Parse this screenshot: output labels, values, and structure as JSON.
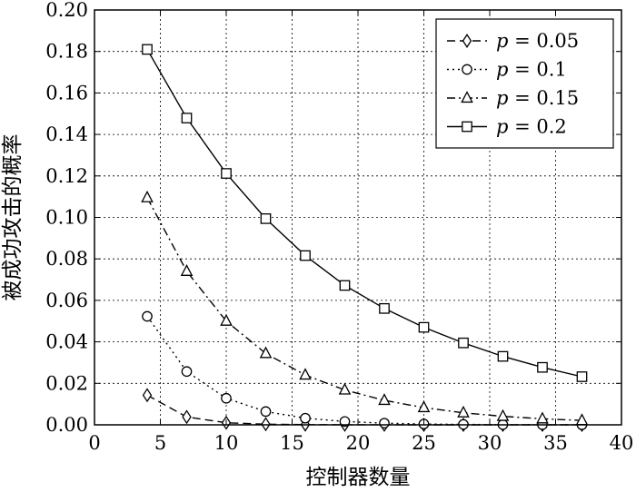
{
  "chart_data": {
    "type": "line",
    "title": "",
    "xlabel": "控制器数量",
    "ylabel": "被成功攻击的概率",
    "xlim": [
      0,
      40
    ],
    "ylim": [
      0,
      0.2
    ],
    "grid": true,
    "legend_position": "top-right",
    "x_ticks": [
      "0",
      "5",
      "10",
      "15",
      "20",
      "25",
      "30",
      "35",
      "40"
    ],
    "y_ticks": [
      "0.00",
      "0.02",
      "0.04",
      "0.06",
      "0.08",
      "0.10",
      "0.12",
      "0.14",
      "0.16",
      "0.18",
      "0.20"
    ],
    "x": [
      4,
      7,
      10,
      13,
      16,
      19,
      22,
      25,
      28,
      31,
      34,
      37
    ],
    "series": [
      {
        "name": "p = 0.05",
        "name_var": "p",
        "name_value": "= 0.05",
        "marker": "diamond",
        "dash": "dashed",
        "values": [
          0.0143,
          0.0038,
          0.001,
          0.0003,
          0.0001,
          3e-05,
          1e-05,
          0.0,
          0.0,
          0.0,
          0.0,
          0.0
        ]
      },
      {
        "name": "p = 0.1",
        "name_var": "p",
        "name_value": "= 0.1",
        "marker": "circle",
        "dash": "dotted",
        "values": [
          0.0523,
          0.0257,
          0.0128,
          0.0064,
          0.0032,
          0.0016,
          0.0008,
          0.0004,
          0.0002,
          0.0001,
          5e-05,
          2e-05
        ]
      },
      {
        "name": "p = 0.15",
        "name_var": "p",
        "name_value": "= 0.15",
        "marker": "triangle",
        "dash": "dashdot",
        "values": [
          0.1095,
          0.074,
          0.05,
          0.0344,
          0.024,
          0.0168,
          0.0118,
          0.0083,
          0.0058,
          0.0041,
          0.0029,
          0.0021
        ]
      },
      {
        "name": "p = 0.2",
        "name_var": "p",
        "name_value": "= 0.2",
        "marker": "square",
        "dash": "solid",
        "values": [
          0.181,
          0.1479,
          0.1212,
          0.0994,
          0.0816,
          0.0672,
          0.0561,
          0.047,
          0.0395,
          0.033,
          0.0277,
          0.0232
        ]
      }
    ]
  }
}
